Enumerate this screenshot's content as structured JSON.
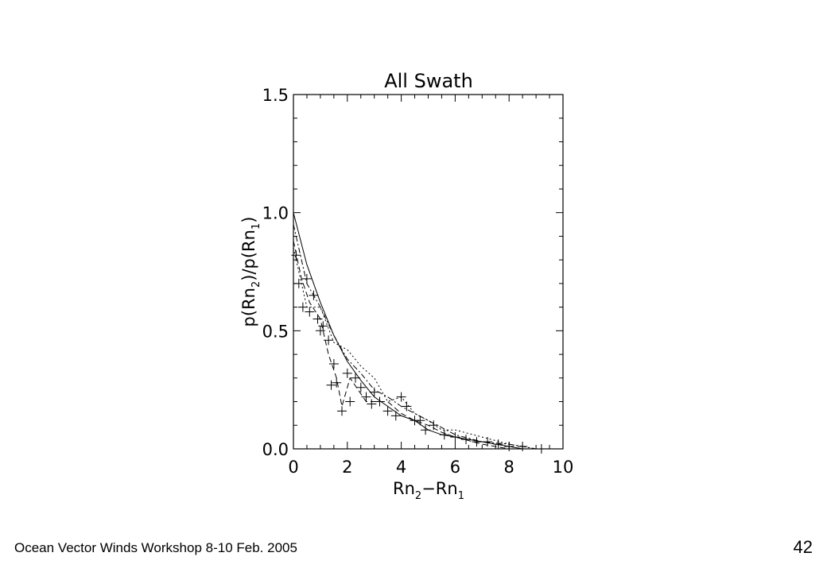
{
  "footer": {
    "text": "Ocean Vector Winds Workshop 8-10 Feb. 2005",
    "page_number": "42"
  },
  "chart_data": {
    "type": "scatter",
    "title": "All Swath",
    "xlabel": {
      "base": "Rn",
      "sub1": "2",
      "mid": "−Rn",
      "sub2": "1"
    },
    "ylabel": {
      "p1": "p(Rn",
      "sub1": "2",
      "p2": ")/p(Rn",
      "sub2": "1",
      "p3": ")"
    },
    "xlim": [
      0,
      10
    ],
    "ylim": [
      0.0,
      1.5
    ],
    "x_ticks": [
      0,
      2,
      4,
      6,
      8,
      10
    ],
    "x_tick_labels": [
      "0",
      "2",
      "4",
      "6",
      "8",
      "10"
    ],
    "y_ticks": [
      0.0,
      0.5,
      1.0,
      1.5
    ],
    "y_tick_labels": [
      "0.0",
      "0.5",
      "1.0",
      "1.5"
    ],
    "grid": false,
    "series": [
      {
        "style": "solid",
        "x": [
          0,
          0.5,
          1,
          1.5,
          2,
          2.5,
          3,
          3.5,
          4,
          4.5,
          5,
          5.5,
          6,
          6.5,
          7,
          7.5,
          8,
          8.5
        ],
        "y": [
          1.0,
          0.78,
          0.62,
          0.48,
          0.37,
          0.29,
          0.22,
          0.18,
          0.14,
          0.12,
          0.08,
          0.06,
          0.05,
          0.04,
          0.03,
          0.02,
          0.01,
          0.0
        ]
      },
      {
        "style": "dashed",
        "x": [
          0,
          0.3,
          0.6,
          1,
          1.3,
          1.6,
          1.8,
          2.1,
          2.4,
          2.7,
          3,
          3.5,
          4,
          4.5,
          5,
          5.5,
          6,
          7,
          8
        ],
        "y": [
          0.88,
          0.72,
          0.62,
          0.55,
          0.4,
          0.3,
          0.18,
          0.3,
          0.25,
          0.2,
          0.2,
          0.2,
          0.15,
          0.12,
          0.1,
          0.07,
          0.05,
          0.02,
          0.0
        ]
      },
      {
        "style": "dotted",
        "x": [
          0,
          0.5,
          1,
          1.5,
          2,
          2.5,
          3,
          3.5,
          4,
          4.5,
          5,
          5.5,
          6,
          7,
          8,
          9
        ],
        "y": [
          0.85,
          0.6,
          0.6,
          0.45,
          0.42,
          0.35,
          0.3,
          0.2,
          0.22,
          0.15,
          0.12,
          0.08,
          0.08,
          0.05,
          0.02,
          0.0
        ]
      },
      {
        "style": "dashdot",
        "x": [
          0,
          0.5,
          1,
          1.5,
          2,
          2.5,
          3,
          3.5,
          4,
          4.5,
          5,
          5.5,
          6,
          7,
          8,
          9
        ],
        "y": [
          0.95,
          0.7,
          0.6,
          0.48,
          0.38,
          0.32,
          0.25,
          0.22,
          0.18,
          0.15,
          0.12,
          0.09,
          0.06,
          0.03,
          0.02,
          0.0
        ]
      }
    ],
    "markers": {
      "symbol": "+",
      "x": [
        0.1,
        0.2,
        0.35,
        0.5,
        0.6,
        0.75,
        0.9,
        1.0,
        1.1,
        1.3,
        1.4,
        1.5,
        1.6,
        1.8,
        2.0,
        2.1,
        2.3,
        2.5,
        2.7,
        2.9,
        3.0,
        3.2,
        3.5,
        3.8,
        4.0,
        4.2,
        4.5,
        4.7,
        4.9,
        5.2,
        5.6,
        6.0,
        6.4,
        6.8,
        7.2,
        7.6,
        8.0,
        8.5,
        9.2
      ],
      "y": [
        0.82,
        0.7,
        0.6,
        0.72,
        0.58,
        0.65,
        0.55,
        0.5,
        0.52,
        0.46,
        0.27,
        0.36,
        0.28,
        0.16,
        0.32,
        0.2,
        0.3,
        0.26,
        0.22,
        0.19,
        0.24,
        0.2,
        0.16,
        0.14,
        0.22,
        0.18,
        0.12,
        0.12,
        0.08,
        0.1,
        0.06,
        0.05,
        0.04,
        0.03,
        0.03,
        0.02,
        0.01,
        0.01,
        0.0
      ]
    }
  }
}
